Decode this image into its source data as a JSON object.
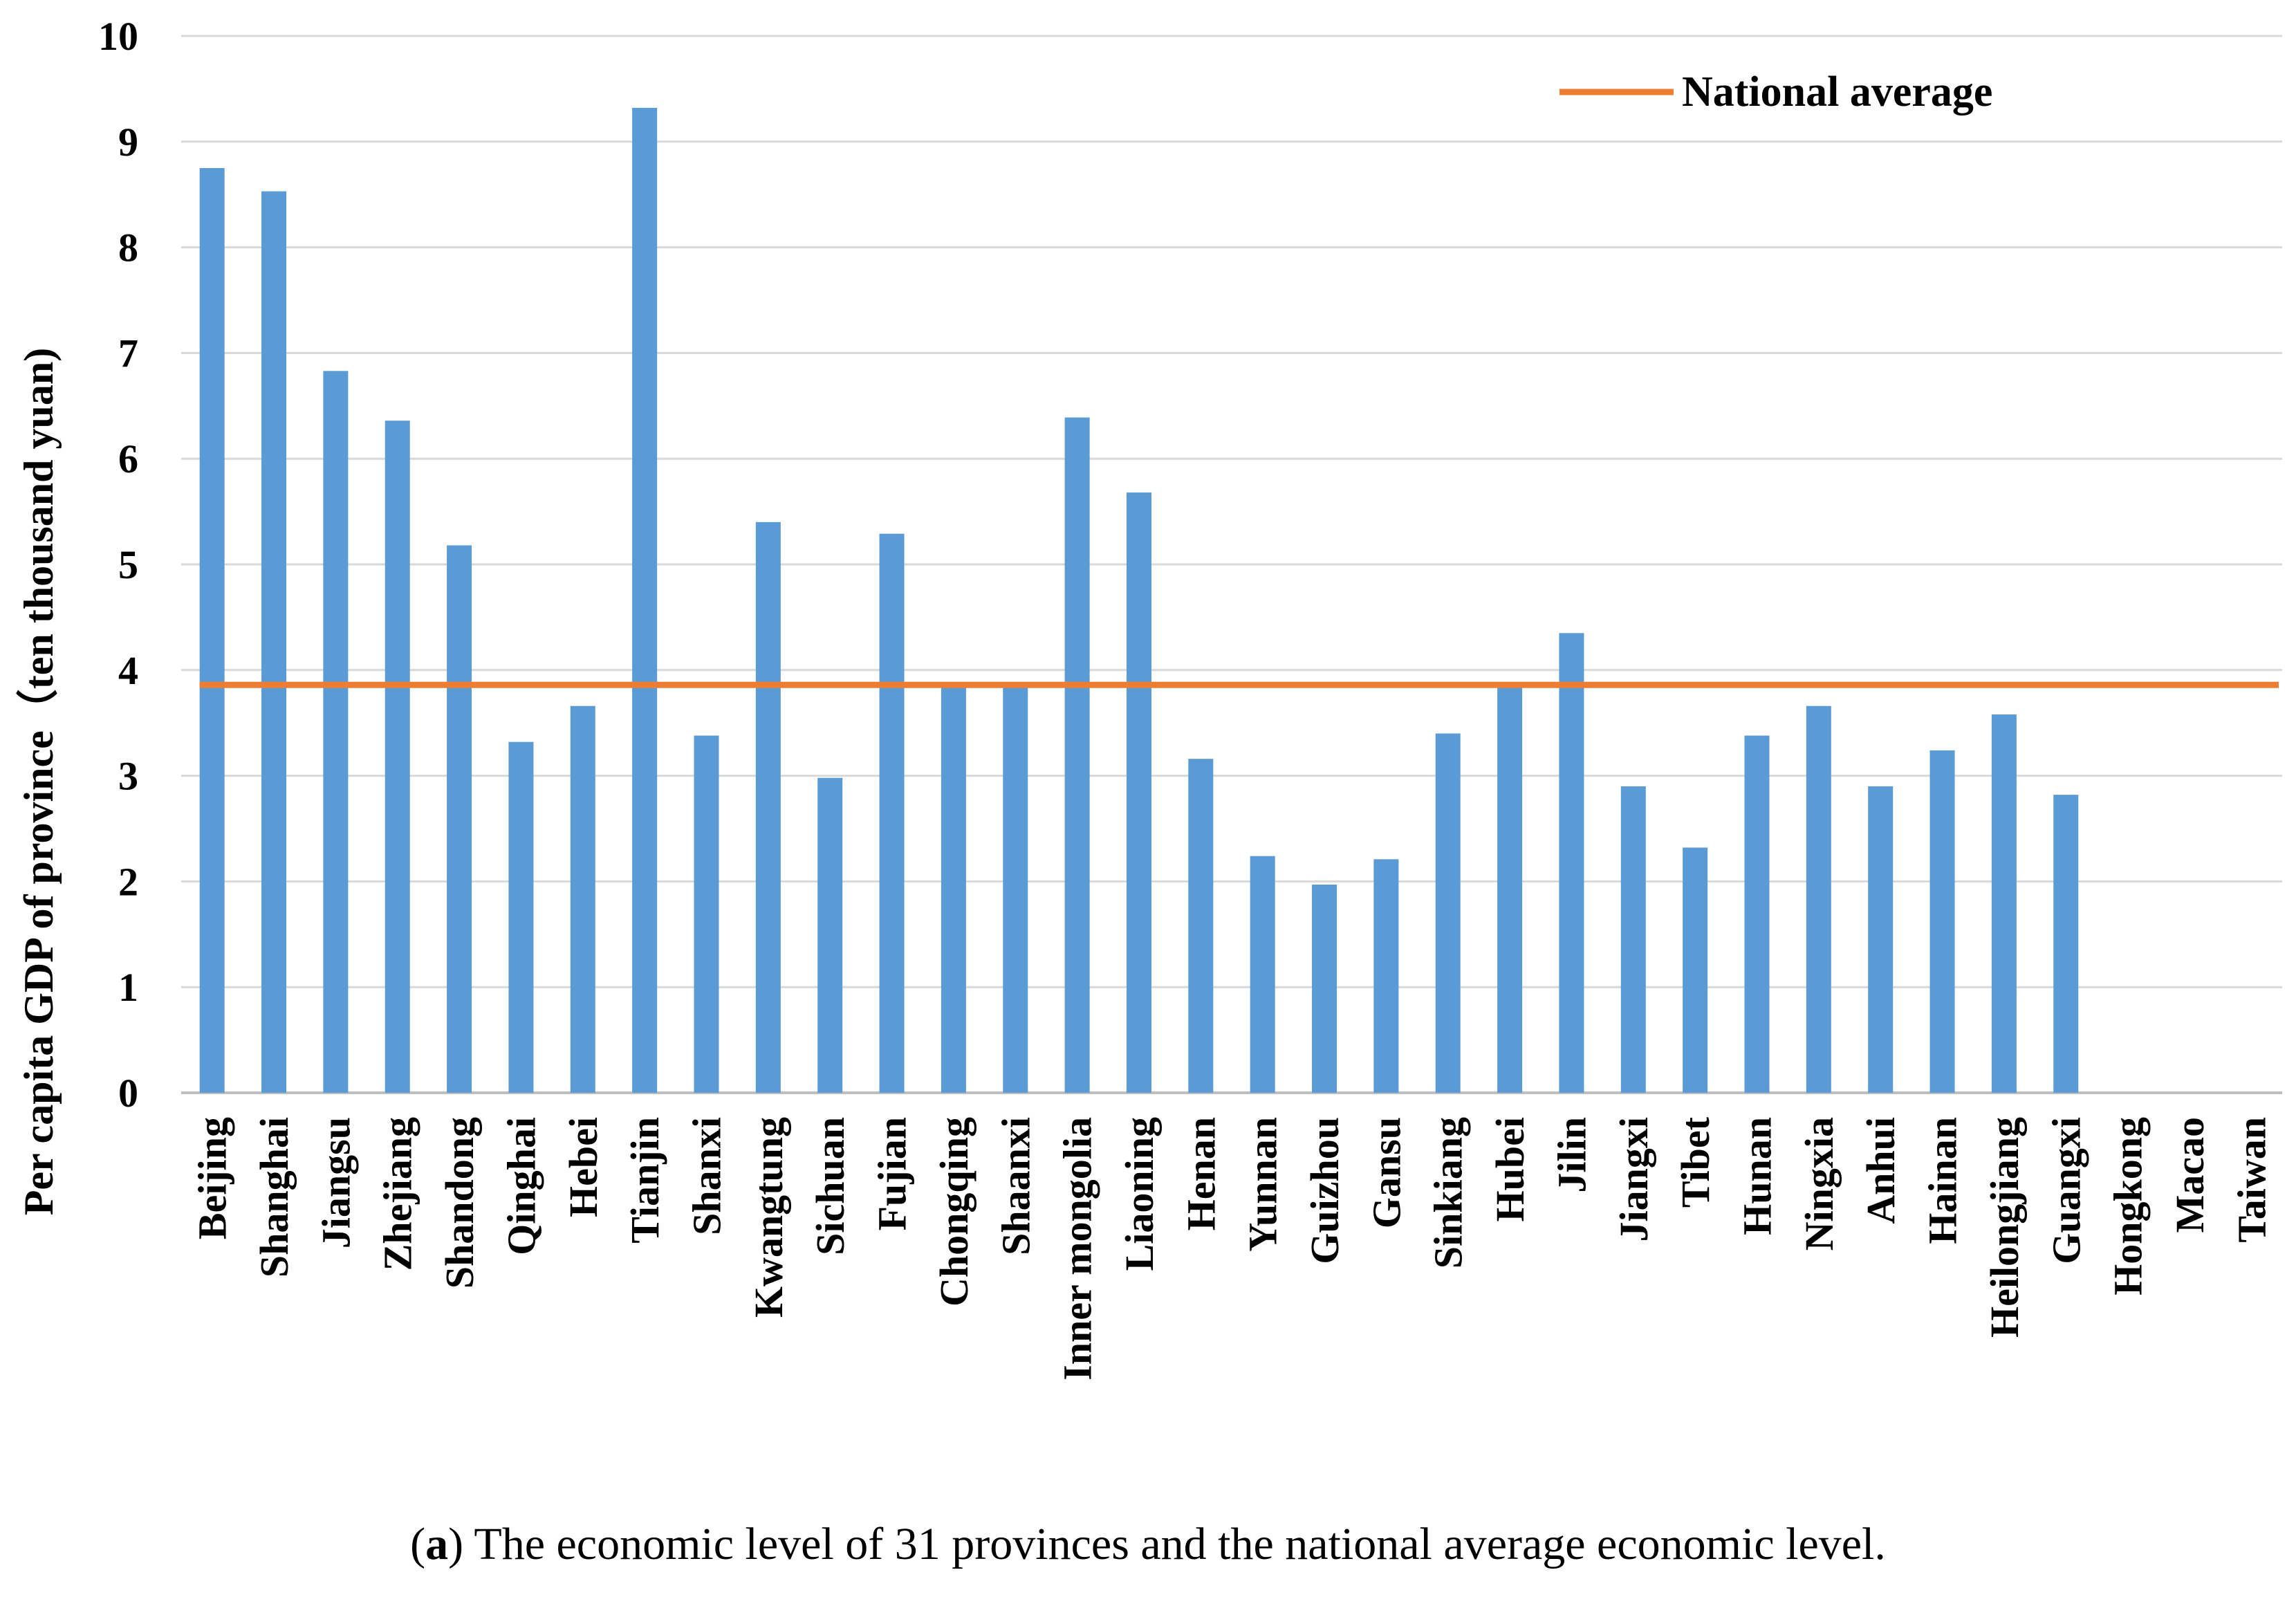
{
  "chart_data": {
    "type": "bar",
    "ylabel": "Per capita GDP of province（ten thousand yuan)",
    "ylim": [
      0,
      10
    ],
    "yticks": [
      "0",
      "1",
      "2",
      "3",
      "4",
      "5",
      "6",
      "7",
      "8",
      "9",
      "10"
    ],
    "grid": true,
    "legend_position": "top-right",
    "categories": [
      "Beijing",
      "Shanghai",
      "Jiangsu",
      "Zhejiang",
      "Shandong",
      "Qinghai",
      "Hebei",
      "Tianjin",
      "Shanxi",
      "Kwangtung",
      "Sichuan",
      "Fujian",
      "Chongqing",
      "Shaanxi",
      "Inner mongolia",
      "Liaoning",
      "Henan",
      "Yunnan",
      "Guizhou",
      "Gansu",
      "Sinkiang",
      "Hubei",
      "Jilin",
      "Jiangxi",
      "Tibet",
      "Hunan",
      "Ningxia",
      "Anhui",
      "Hainan",
      "Heilongjiang",
      "Guangxi",
      "Hongkong",
      "Macao",
      "Taiwan"
    ],
    "series": [
      {
        "name": "Per capita GDP",
        "type": "bar",
        "color": "#5b9bd5",
        "values": [
          8.75,
          8.53,
          6.83,
          6.36,
          5.18,
          3.32,
          3.66,
          9.32,
          3.38,
          5.4,
          2.98,
          5.29,
          3.86,
          3.87,
          6.39,
          5.68,
          3.16,
          2.24,
          1.97,
          2.21,
          3.4,
          3.86,
          4.35,
          2.9,
          2.32,
          3.38,
          3.66,
          2.9,
          3.24,
          3.58,
          2.82,
          null,
          null,
          null
        ]
      },
      {
        "name": "National average",
        "type": "line",
        "color": "#ed7d31",
        "value": 3.86
      }
    ]
  },
  "caption": {
    "prefix_open": "(",
    "letter": "a",
    "text": ") The economic level of 31 provinces and the national average economic level."
  }
}
